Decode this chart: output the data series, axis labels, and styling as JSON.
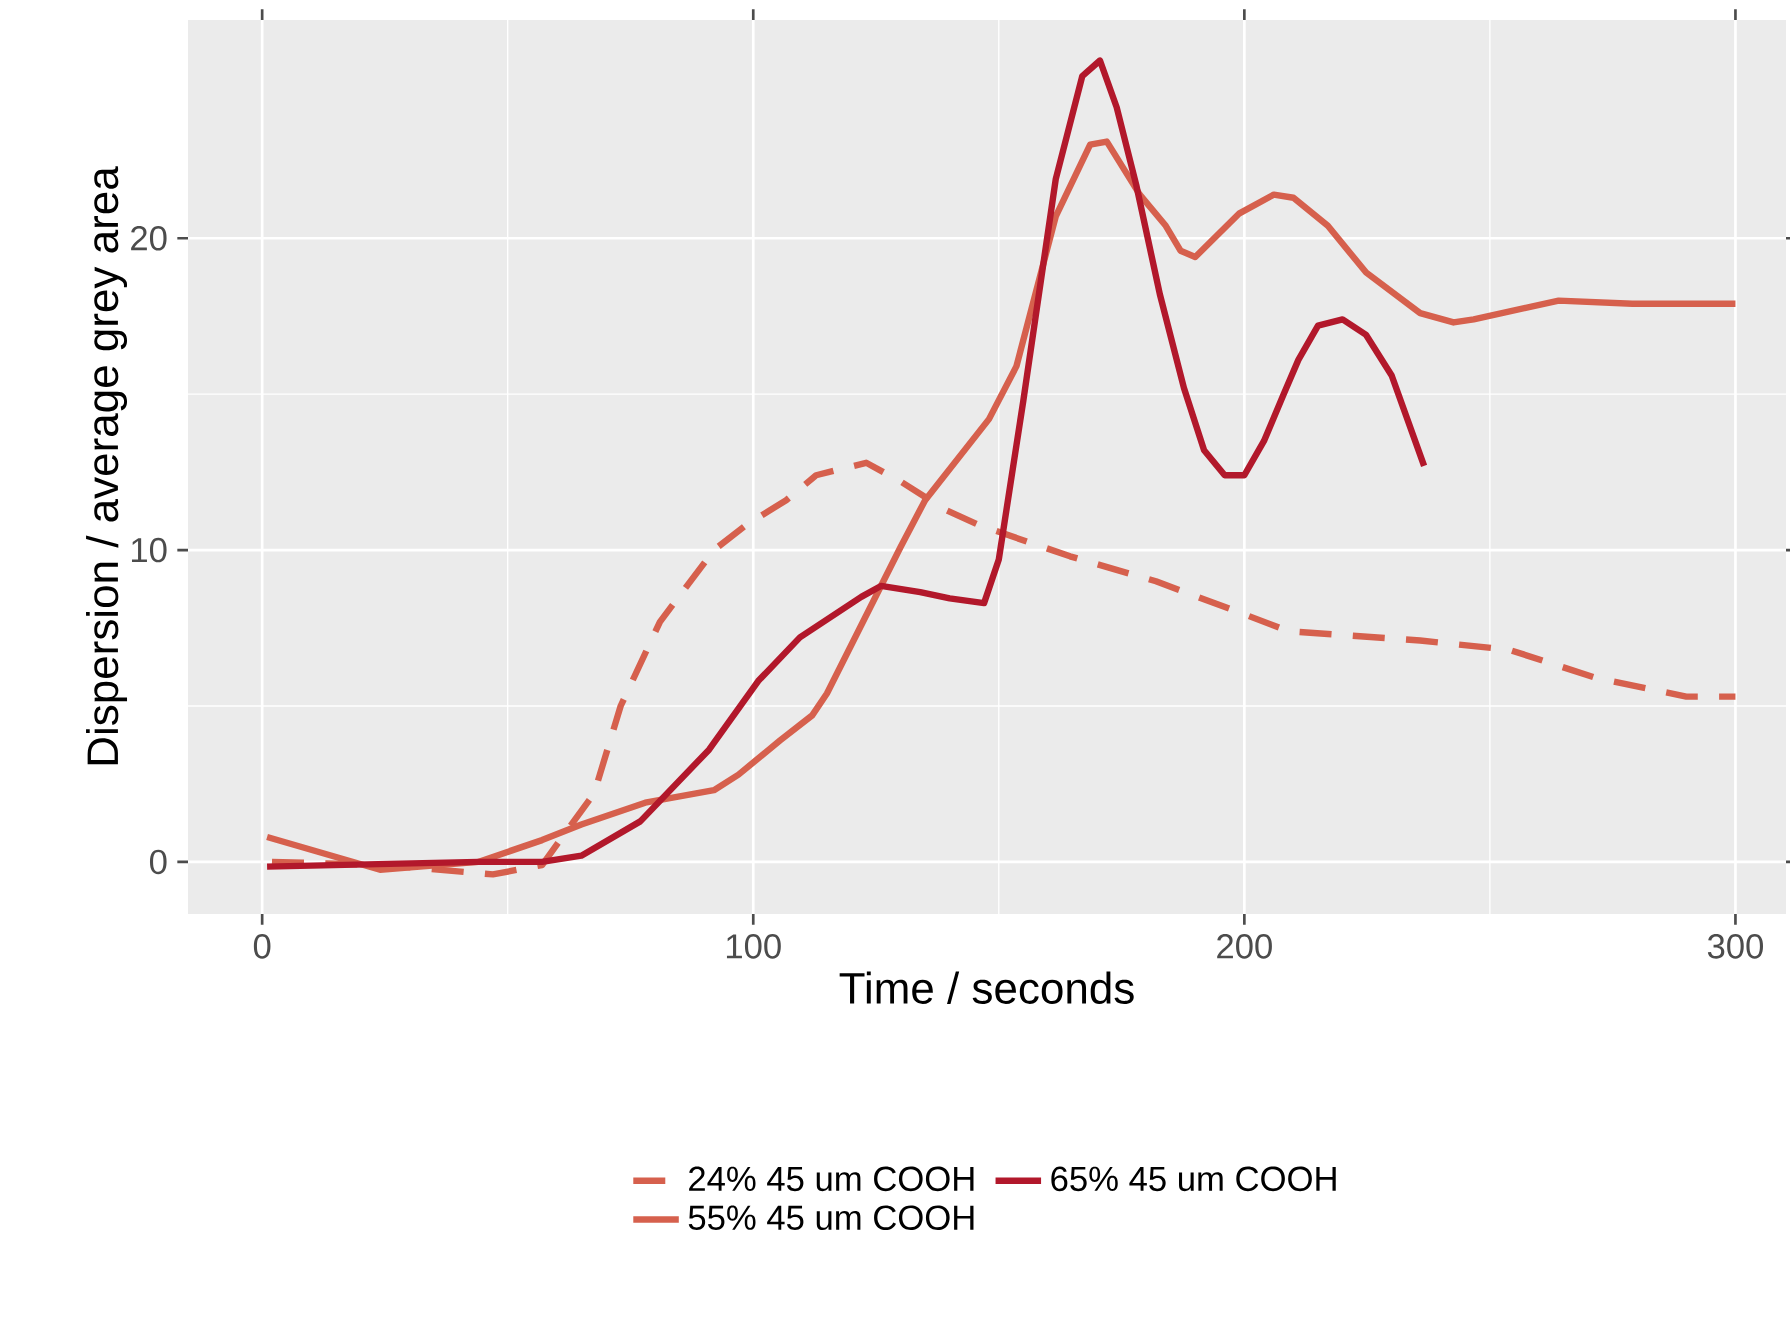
{
  "chart_data": {
    "type": "line",
    "xlabel": "Time / seconds",
    "ylabel": "Dispersion / average grey area",
    "xlim": [
      -15.1,
      310.3
    ],
    "ylim": [
      -1.67,
      27.0
    ],
    "xticks": [
      0,
      100,
      200,
      300
    ],
    "yticks": [
      0,
      10,
      20
    ],
    "grid": true,
    "legend": "bottom",
    "marker": "none",
    "series": [
      {
        "name": "24% 45 um COOH",
        "color": "#d6604d",
        "line_style": "dashed",
        "x": [
          2,
          25,
          47,
          57,
          67.6,
          73,
          81,
          92,
          98.5,
          106.7,
          112.8,
          123,
          130,
          139,
          146,
          164.5,
          182,
          199,
          209,
          235.8,
          254,
          271.6,
          290,
          300
        ],
        "values": [
          0.0,
          -0.1,
          -0.4,
          -0.1,
          2.2,
          5.0,
          7.7,
          10.0,
          10.8,
          11.6,
          12.4,
          12.8,
          12.2,
          11.3,
          10.8,
          9.8,
          9.0,
          8.0,
          7.4,
          7.1,
          6.8,
          5.9,
          5.3,
          5.3
        ]
      },
      {
        "name": "55% 45 um COOH",
        "color": "#d6604d",
        "line_style": "solid",
        "x": [
          1,
          24,
          44,
          57,
          65,
          78,
          92,
          97,
          105.5,
          112,
          115,
          130,
          135,
          148,
          153.6,
          161.6,
          168.6,
          172,
          178.7,
          184,
          187,
          190,
          199,
          206,
          210,
          217,
          224.8,
          235.8,
          242.6,
          246.7,
          264,
          279,
          300
        ],
        "values": [
          0.8,
          -0.25,
          0.0,
          0.7,
          1.2,
          1.9,
          2.3,
          2.8,
          3.9,
          4.7,
          5.4,
          10.1,
          11.6,
          14.2,
          15.9,
          20.7,
          23.0,
          23.1,
          21.4,
          20.4,
          19.6,
          19.4,
          20.8,
          21.4,
          21.3,
          20.4,
          18.9,
          17.6,
          17.3,
          17.4,
          18.0,
          17.9,
          17.9
        ]
      },
      {
        "name": "65% 45 um COOH",
        "color": "#b2182b",
        "line_style": "solid",
        "x": [
          1,
          44,
          57,
          65,
          77,
          91,
          101,
          109.5,
          122,
          126,
          134,
          140,
          147,
          150,
          155,
          161.6,
          167,
          170.6,
          174,
          178,
          182.8,
          187.7,
          191.8,
          196,
          200,
          204,
          208,
          211,
          215,
          220,
          224.8,
          230,
          236.6
        ],
        "values": [
          -0.15,
          0.0,
          0.0,
          0.2,
          1.3,
          3.6,
          5.8,
          7.2,
          8.5,
          8.85,
          8.65,
          8.45,
          8.3,
          9.7,
          14.8,
          21.9,
          25.2,
          25.7,
          24.2,
          21.7,
          18.2,
          15.2,
          13.2,
          12.4,
          12.4,
          13.5,
          15.0,
          16.1,
          17.2,
          17.4,
          16.9,
          15.6,
          12.7
        ]
      }
    ]
  }
}
